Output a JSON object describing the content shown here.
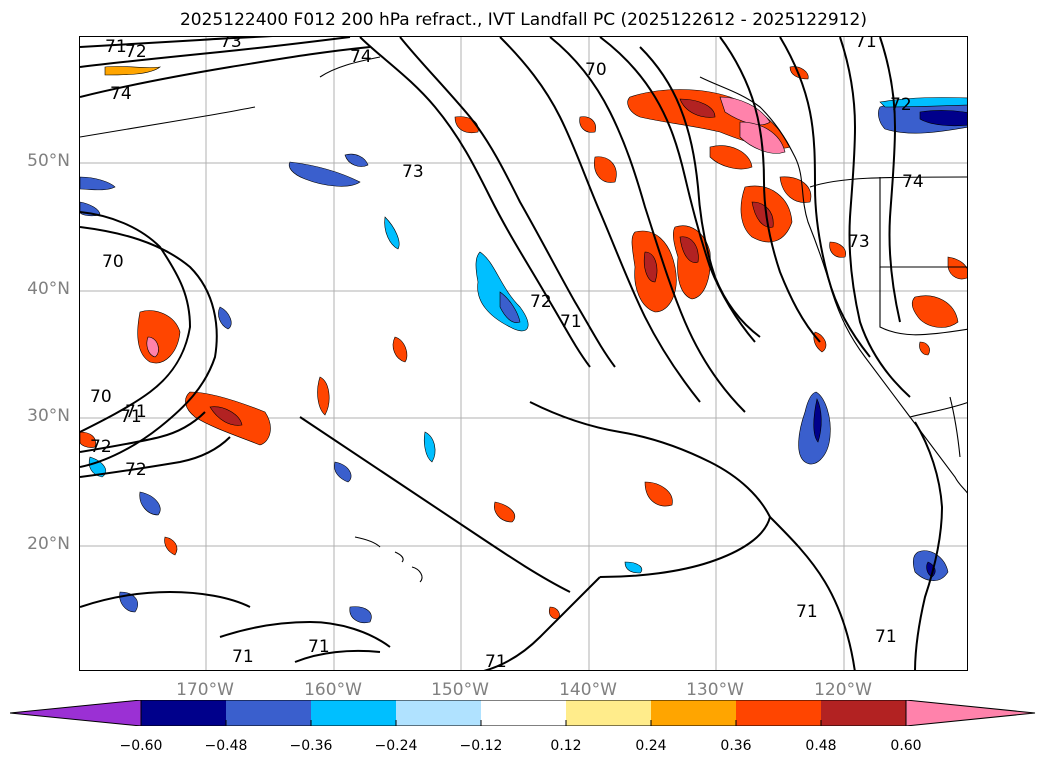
{
  "title": "2025122400 F012 200 hPa refract., IVT Landfall PC (2025122612 - 2025122912)",
  "lat_labels": [
    "50°N",
    "40°N",
    "30°N",
    "20°N"
  ],
  "lon_labels": [
    "170°W",
    "160°W",
    "150°W",
    "140°W",
    "130°W",
    "120°W"
  ],
  "colorbar": {
    "tick_labels": [
      "−0.60",
      "−0.48",
      "−0.36",
      "−0.24",
      "−0.12",
      "0.12",
      "0.24",
      "0.36",
      "0.48",
      "0.60"
    ],
    "colors": [
      "#9b30d4",
      "#00008b",
      "#3a5fcd",
      "#00bfff",
      "#b0e2ff",
      "#ffffff",
      "#ffec8b",
      "#ffa500",
      "#ff4500",
      "#b22222",
      "#ff82ab"
    ]
  },
  "contour_labels": [
    "71",
    "72",
    "74",
    "73",
    "74",
    "70",
    "71",
    "72",
    "73",
    "70",
    "71",
    "72",
    "71",
    "72",
    "70",
    "71",
    "72",
    "73",
    "74",
    "71",
    "71",
    "71",
    "71",
    "71"
  ],
  "colors": {
    "contour": "#000000",
    "grid": "#b0b0b0",
    "coast": "#000000",
    "positive_low": "#ffec8b",
    "positive_mid": "#ffa500",
    "positive_high": "#ff4500",
    "positive_vhigh": "#b22222",
    "positive_max": "#ff82ab",
    "negative_low": "#b0e2ff",
    "negative_mid": "#00bfff",
    "negative_high": "#3a5fcd",
    "negative_vhigh": "#00008b"
  }
}
